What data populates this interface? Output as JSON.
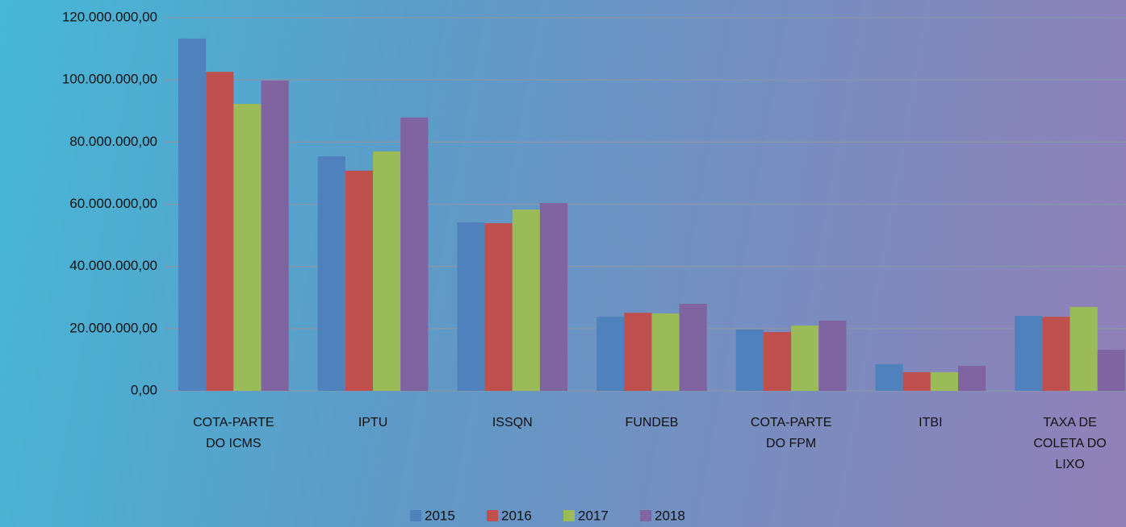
{
  "chart_data": {
    "type": "bar",
    "categories": [
      "COTA-PARTE DO ICMS",
      "IPTU",
      "ISSQN",
      "FUNDEB",
      "COTA-PARTE DO FPM",
      "ITBI",
      "TAXA DE COLETA DO LIXO"
    ],
    "series": [
      {
        "name": "2015",
        "color": "#4f81bd",
        "values": [
          113300000,
          75400000,
          54200000,
          23800000,
          19700000,
          8600000,
          24100000
        ]
      },
      {
        "name": "2016",
        "color": "#c0504d",
        "values": [
          102600000,
          70800000,
          53900000,
          25100000,
          18900000,
          6000000,
          23800000
        ]
      },
      {
        "name": "2017",
        "color": "#9bbb59",
        "values": [
          92300000,
          77000000,
          58300000,
          24900000,
          21000000,
          6000000,
          27000000
        ]
      },
      {
        "name": "2018",
        "color": "#8064a2",
        "values": [
          99800000,
          87900000,
          60400000,
          28000000,
          22600000,
          8000000,
          13200000
        ]
      }
    ],
    "ylim": [
      0,
      120000000
    ],
    "yticks": [
      {
        "value": 0,
        "label": "0,00"
      },
      {
        "value": 20000000,
        "label": "20.000.000,00"
      },
      {
        "value": 40000000,
        "label": "40.000.000,00"
      },
      {
        "value": 60000000,
        "label": "60.000.000,00"
      },
      {
        "value": 80000000,
        "label": "80.000.000,00"
      },
      {
        "value": 100000000,
        "label": "100.000.000,00"
      },
      {
        "value": 120000000,
        "label": "120.000.000,00"
      }
    ],
    "grid": true,
    "legend": "bottom"
  }
}
